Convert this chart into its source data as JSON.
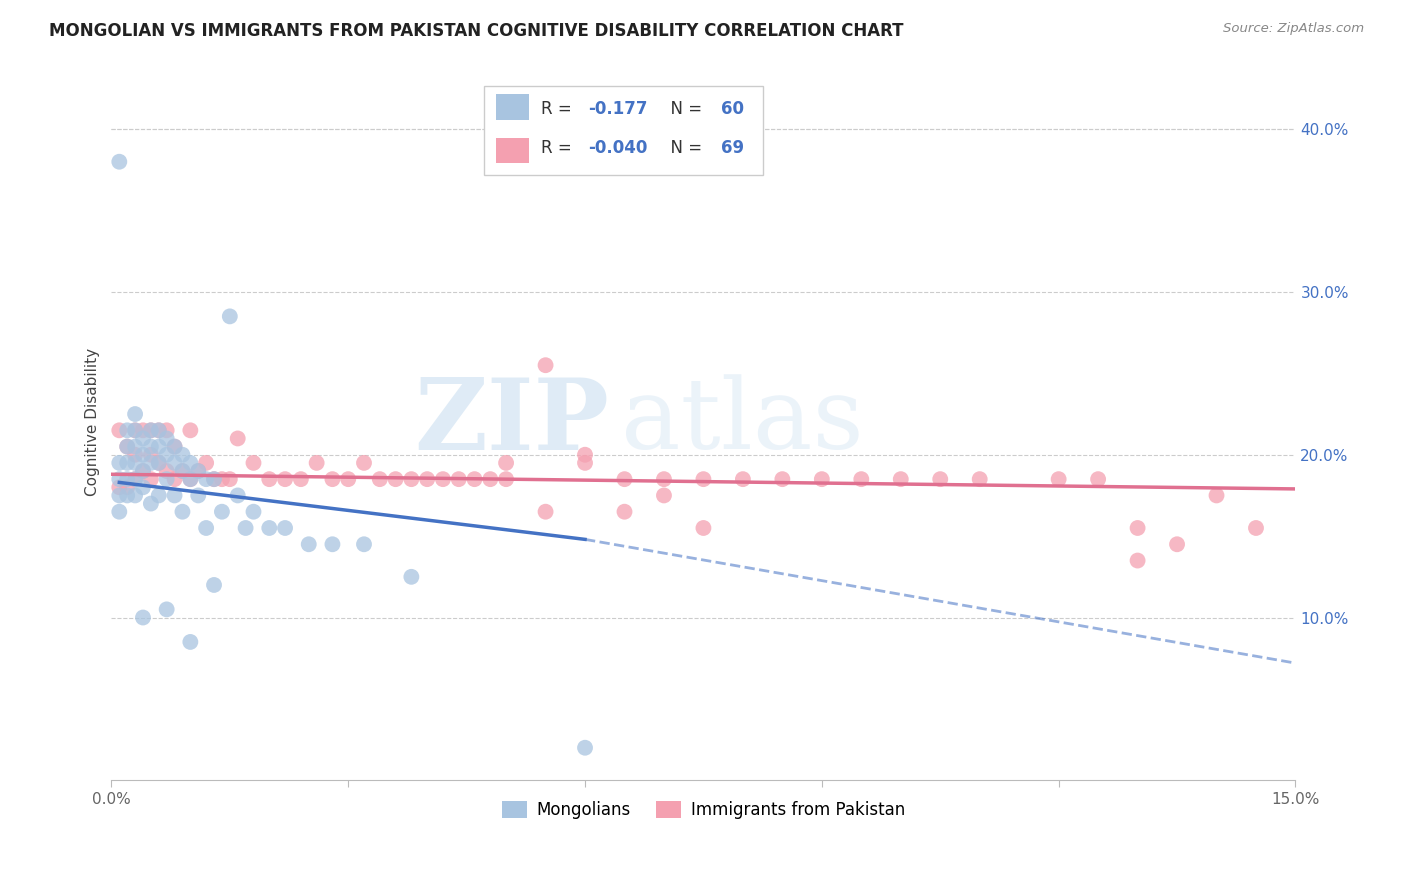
{
  "title": "MONGOLIAN VS IMMIGRANTS FROM PAKISTAN COGNITIVE DISABILITY CORRELATION CHART",
  "source": "Source: ZipAtlas.com",
  "ylabel": "Cognitive Disability",
  "right_yticks": [
    "40.0%",
    "30.0%",
    "20.0%",
    "10.0%"
  ],
  "right_ytick_vals": [
    0.4,
    0.3,
    0.2,
    0.1
  ],
  "xlim": [
    0.0,
    0.15
  ],
  "ylim": [
    0.0,
    0.44
  ],
  "color_mongolian": "#a8c4e0",
  "color_pakistan": "#f4a0b0",
  "color_blue": "#4472c4",
  "color_pink": "#e07090",
  "watermark_zip": "ZIP",
  "watermark_atlas": "atlas",
  "mongolian_x": [
    0.001,
    0.001,
    0.001,
    0.001,
    0.001,
    0.002,
    0.002,
    0.002,
    0.002,
    0.002,
    0.003,
    0.003,
    0.003,
    0.003,
    0.003,
    0.003,
    0.004,
    0.004,
    0.004,
    0.004,
    0.004,
    0.005,
    0.005,
    0.005,
    0.005,
    0.006,
    0.006,
    0.006,
    0.006,
    0.007,
    0.007,
    0.007,
    0.007,
    0.008,
    0.008,
    0.008,
    0.009,
    0.009,
    0.009,
    0.01,
    0.01,
    0.01,
    0.011,
    0.011,
    0.012,
    0.012,
    0.013,
    0.013,
    0.014,
    0.015,
    0.016,
    0.017,
    0.018,
    0.02,
    0.022,
    0.025,
    0.028,
    0.032,
    0.038,
    0.06
  ],
  "mongolian_y": [
    0.38,
    0.195,
    0.185,
    0.175,
    0.165,
    0.215,
    0.205,
    0.195,
    0.185,
    0.175,
    0.225,
    0.215,
    0.205,
    0.195,
    0.185,
    0.175,
    0.21,
    0.2,
    0.19,
    0.18,
    0.1,
    0.215,
    0.205,
    0.195,
    0.17,
    0.215,
    0.205,
    0.195,
    0.175,
    0.21,
    0.2,
    0.185,
    0.105,
    0.205,
    0.195,
    0.175,
    0.2,
    0.19,
    0.165,
    0.195,
    0.185,
    0.085,
    0.19,
    0.175,
    0.185,
    0.155,
    0.185,
    0.12,
    0.165,
    0.285,
    0.175,
    0.155,
    0.165,
    0.155,
    0.155,
    0.145,
    0.145,
    0.145,
    0.125,
    0.02
  ],
  "pakistan_x": [
    0.001,
    0.001,
    0.002,
    0.002,
    0.003,
    0.003,
    0.003,
    0.004,
    0.004,
    0.005,
    0.005,
    0.005,
    0.006,
    0.006,
    0.007,
    0.007,
    0.008,
    0.008,
    0.009,
    0.01,
    0.01,
    0.011,
    0.012,
    0.013,
    0.014,
    0.015,
    0.016,
    0.018,
    0.02,
    0.022,
    0.024,
    0.026,
    0.028,
    0.03,
    0.032,
    0.034,
    0.036,
    0.038,
    0.04,
    0.042,
    0.044,
    0.046,
    0.048,
    0.05,
    0.055,
    0.06,
    0.065,
    0.07,
    0.075,
    0.08,
    0.085,
    0.09,
    0.095,
    0.1,
    0.105,
    0.11,
    0.12,
    0.125,
    0.13,
    0.135,
    0.14,
    0.145,
    0.05,
    0.055,
    0.06,
    0.065,
    0.07,
    0.075,
    0.13
  ],
  "pakistan_y": [
    0.215,
    0.18,
    0.205,
    0.18,
    0.215,
    0.2,
    0.185,
    0.215,
    0.19,
    0.215,
    0.2,
    0.185,
    0.215,
    0.195,
    0.215,
    0.19,
    0.205,
    0.185,
    0.19,
    0.215,
    0.185,
    0.19,
    0.195,
    0.185,
    0.185,
    0.185,
    0.21,
    0.195,
    0.185,
    0.185,
    0.185,
    0.195,
    0.185,
    0.185,
    0.195,
    0.185,
    0.185,
    0.185,
    0.185,
    0.185,
    0.185,
    0.185,
    0.185,
    0.185,
    0.255,
    0.2,
    0.185,
    0.185,
    0.185,
    0.185,
    0.185,
    0.185,
    0.185,
    0.185,
    0.185,
    0.185,
    0.185,
    0.185,
    0.155,
    0.145,
    0.175,
    0.155,
    0.195,
    0.165,
    0.195,
    0.165,
    0.175,
    0.155,
    0.135
  ],
  "trend_blue_x0": 0.001,
  "trend_blue_x_solid_end": 0.06,
  "trend_blue_x1": 0.15,
  "trend_blue_y0": 0.183,
  "trend_blue_y_solid_end": 0.148,
  "trend_blue_y1": 0.072,
  "trend_pink_x0": 0.0,
  "trend_pink_x1": 0.15,
  "trend_pink_y0": 0.188,
  "trend_pink_y1": 0.179
}
